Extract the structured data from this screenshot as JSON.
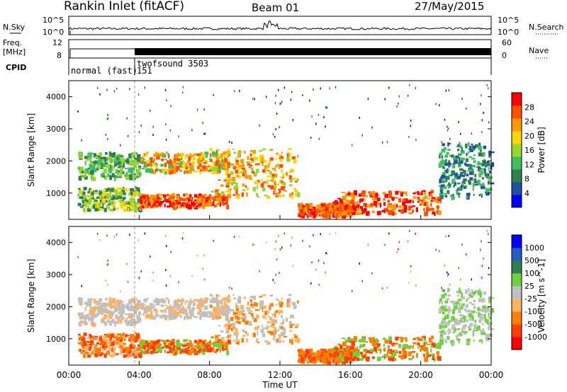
{
  "header": {
    "title": "Rankin Inlet (fitACF)",
    "beam": "Beam 01",
    "date": "27/May/2015"
  },
  "panel_labels": {
    "nsky": "N.Sky",
    "nsearch": "N.Search",
    "freq_line1": "Freq.",
    "freq_line2": "[MHz]",
    "nave": "Nave",
    "cpid": "CPID"
  },
  "noise_axis": {
    "left_top": "10^5",
    "left_bottom": "10^0",
    "right_top": "10^5",
    "right_bottom": "10^0"
  },
  "freq_axis": {
    "left_top": "12",
    "left_bottom": "8",
    "right_top": "60",
    "right_bottom": "0"
  },
  "cpid_labels": {
    "mode1": "normal (fast)",
    "mode2": "twofsound 3503",
    "mode2_id": "151"
  },
  "colors": {
    "power": [
      "#0000ff",
      "#1f4fa0",
      "#2f7f4f",
      "#3fbf5f",
      "#9ad430",
      "#ffd400",
      "#ff9900",
      "#ff5000",
      "#ff0000"
    ],
    "velocity": [
      "#0000ff",
      "#2060c0",
      "#2f7f4f",
      "#6fd040",
      "#c0c0c0",
      "#ffb060",
      "#ff8000",
      "#ff4000",
      "#ff0000"
    ]
  },
  "chart_data": [
    {
      "type": "heatmap",
      "name": "power",
      "ylabel": "Slant Range [km]",
      "yticks": [
        "1000",
        "2000",
        "3000",
        "4000"
      ],
      "ylim": [
        180,
        4500
      ],
      "colorbar_label": "Power [dB]",
      "colorbar_ticks": [
        "4",
        "8",
        "12",
        "16",
        "20",
        "24",
        "28"
      ],
      "colorbar_range": [
        0,
        30
      ]
    },
    {
      "type": "heatmap",
      "name": "velocity",
      "xlabel": "Time UT",
      "xticks": [
        "00:00",
        "04:00",
        "08:00",
        "12:00",
        "16:00",
        "20:00",
        "00:00"
      ],
      "ylabel": "Slant Range [km]",
      "yticks": [
        "1000",
        "2000",
        "3000",
        "4000"
      ],
      "ylim": [
        180,
        4500
      ],
      "colorbar_label": "Velocity [m s^-1]",
      "colorbar_ticks": [
        "1000",
        "500",
        "100",
        "25",
        "-25",
        "-100",
        "-500",
        "-1000"
      ]
    }
  ]
}
